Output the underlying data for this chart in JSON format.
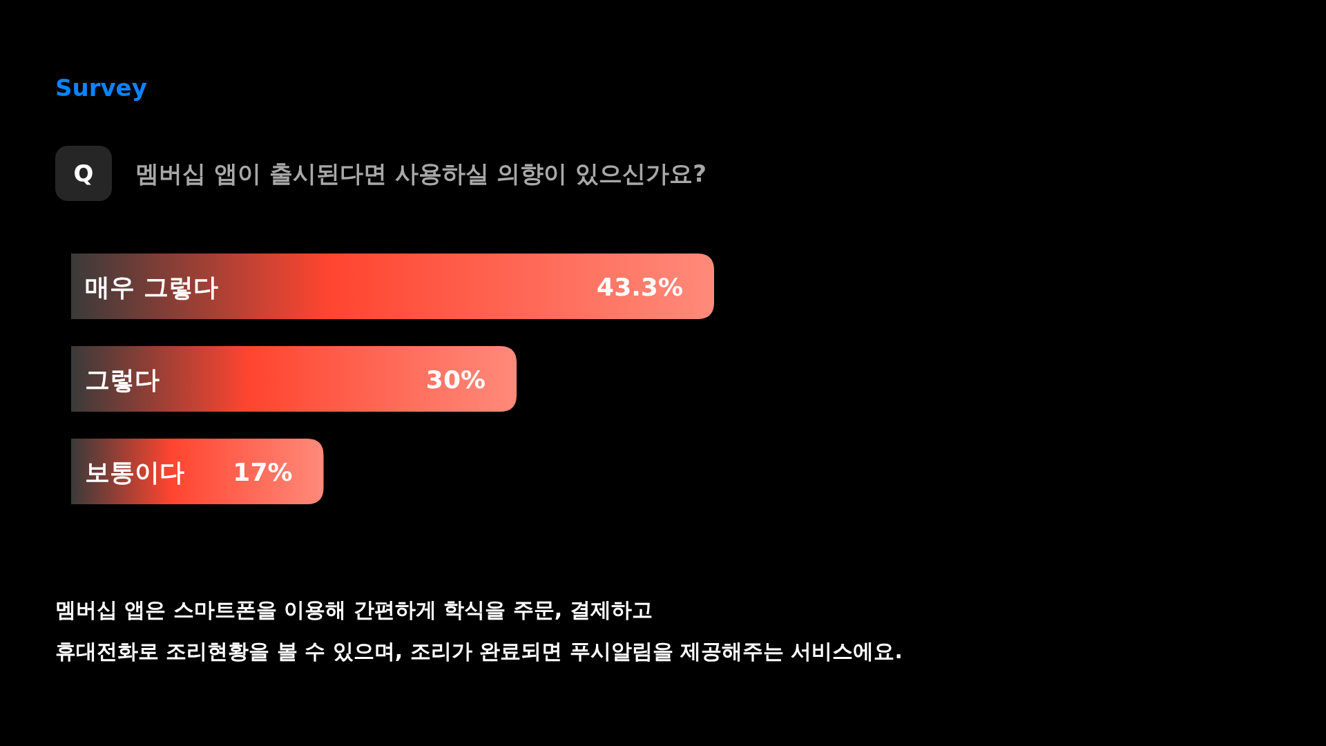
{
  "chart_data": {
    "type": "bar",
    "orientation": "horizontal",
    "title": "Survey",
    "subtitle": "멤버십 앱이 출시된다면 사용하실 의향이 있으신가요?",
    "categories": [
      "매우 그렇다",
      "그렇다",
      "보통이다"
    ],
    "values": [
      43.3,
      30,
      17
    ],
    "value_labels": [
      "43.3%",
      "30%",
      "17%"
    ],
    "color": "#ff4530",
    "annotations": [
      "Q",
      "멤버십 앱은 스마트폰을 이용해 간편하게 학식을 주문, 결제하고",
      "휴대전화로 조리현황을 볼 수 있으며, 조리가 완료되면 푸시알림을 제공해주는 서비스에요."
    ]
  }
}
